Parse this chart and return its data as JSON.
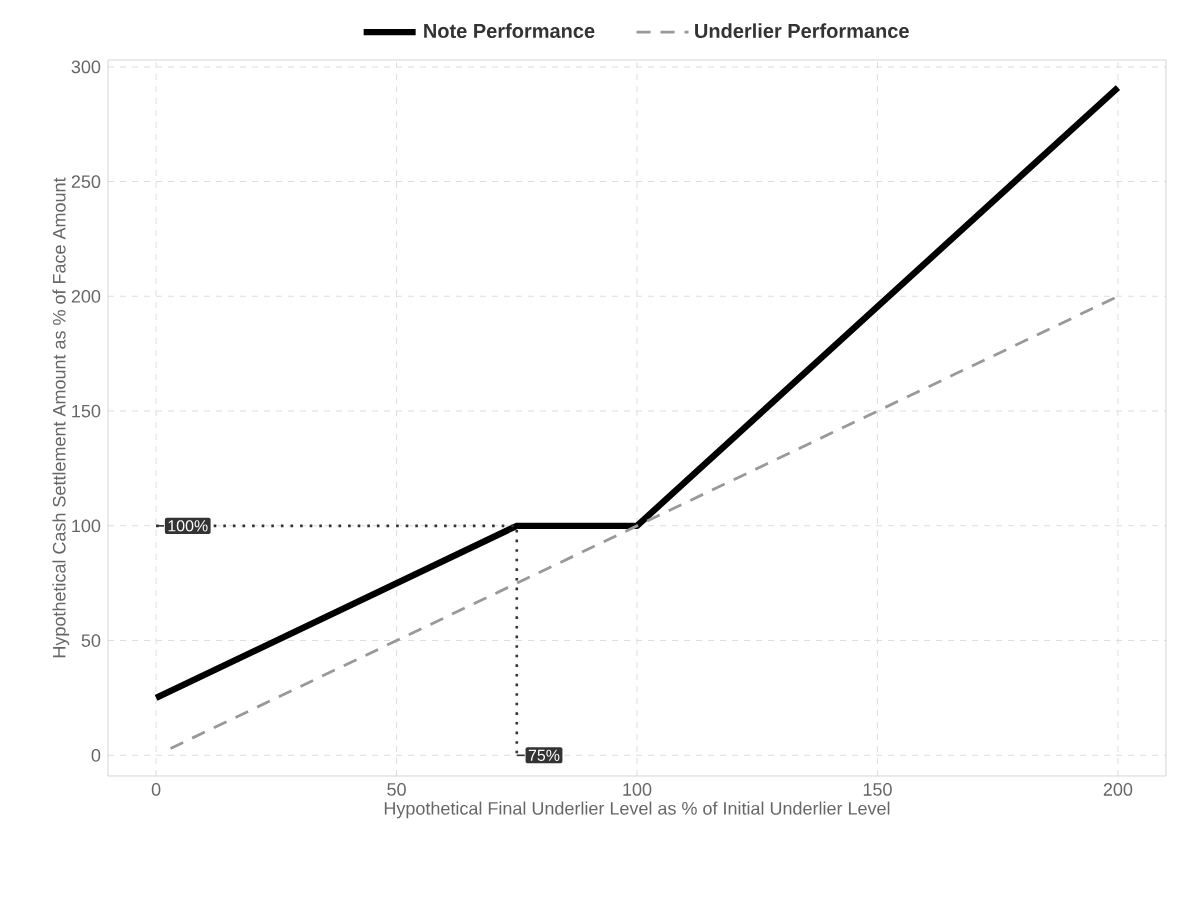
{
  "chart_data": {
    "type": "line",
    "xlabel": "Hypothetical Final Underlier Level as % of Initial Underlier Level",
    "ylabel": "Hypothetical Cash Settlement Amount as % of Face Amount",
    "series": [
      {
        "name": "Note Performance",
        "color": "#000000",
        "line_style": "solid",
        "x": [
          0,
          75,
          100,
          200
        ],
        "values": [
          25,
          100,
          100,
          291
        ]
      },
      {
        "name": "Underlier Performance",
        "color": "#999999",
        "line_style": "dashed",
        "x": [
          3,
          200
        ],
        "values": [
          3,
          200
        ]
      },
      {
        "color": "#333333",
        "line_style": "dotted",
        "x": [
          0,
          75,
          75
        ],
        "values": [
          100,
          100,
          0
        ]
      }
    ],
    "annotations": [
      {
        "text": "100%",
        "x": 0,
        "y": 100
      },
      {
        "text": "75%",
        "x": 75,
        "y": 0
      }
    ],
    "xlim": [
      -10,
      210
    ],
    "ylim": [
      -9,
      303
    ],
    "xticks": [
      0,
      50,
      100,
      150,
      200
    ],
    "yticks": [
      0,
      50,
      100,
      150,
      200,
      250,
      300
    ],
    "grid": true,
    "legend": "top",
    "marker": "none"
  }
}
